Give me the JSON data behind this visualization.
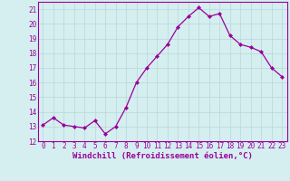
{
  "x": [
    0,
    1,
    2,
    3,
    4,
    5,
    6,
    7,
    8,
    9,
    10,
    11,
    12,
    13,
    14,
    15,
    16,
    17,
    18,
    19,
    20,
    21,
    22,
    23
  ],
  "y": [
    13.1,
    13.6,
    13.1,
    13.0,
    12.9,
    13.4,
    12.5,
    13.0,
    14.3,
    16.0,
    17.0,
    17.8,
    18.6,
    19.8,
    20.5,
    21.1,
    20.5,
    20.7,
    19.2,
    18.6,
    18.4,
    18.1,
    17.0,
    16.4
  ],
  "line_color": "#990099",
  "marker": "D",
  "markersize": 2.0,
  "linewidth": 0.9,
  "xlabel": "Windchill (Refroidissement éolien,°C)",
  "xlabel_fontsize": 6.5,
  "ylim": [
    12,
    21.5
  ],
  "yticks": [
    12,
    13,
    14,
    15,
    16,
    17,
    18,
    19,
    20,
    21
  ],
  "xticks": [
    0,
    1,
    2,
    3,
    4,
    5,
    6,
    7,
    8,
    9,
    10,
    11,
    12,
    13,
    14,
    15,
    16,
    17,
    18,
    19,
    20,
    21,
    22,
    23
  ],
  "background_color": "#d5eef0",
  "grid_color": "#b8d8d8",
  "tick_color": "#990099",
  "tick_fontsize": 5.5,
  "xlabel_color": "#990099",
  "xlim": [
    -0.5,
    23.5
  ]
}
